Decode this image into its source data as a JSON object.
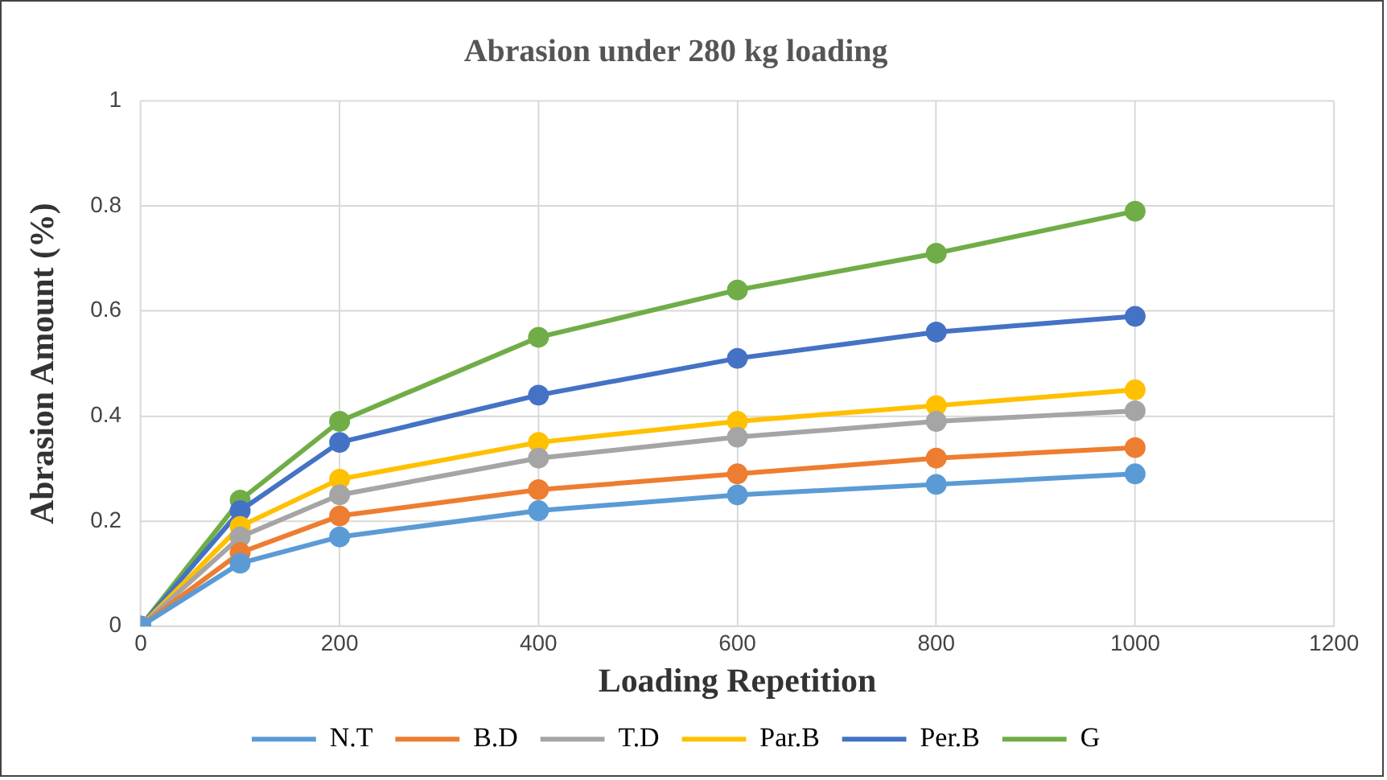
{
  "chart_data": {
    "type": "line",
    "title": "Abrasion under 280 kg loading",
    "xlabel": "Loading Repetition",
    "ylabel": "Abrasion Amount (%)",
    "x": [
      0,
      100,
      200,
      400,
      600,
      800,
      1000
    ],
    "series": [
      {
        "name": "N.T",
        "color": "#5b9bd5",
        "values": [
          0,
          0.12,
          0.17,
          0.22,
          0.25,
          0.27,
          0.29
        ]
      },
      {
        "name": "B.D",
        "color": "#ed7d31",
        "values": [
          0,
          0.14,
          0.21,
          0.26,
          0.29,
          0.32,
          0.34
        ]
      },
      {
        "name": "T.D",
        "color": "#a5a5a5",
        "values": [
          0,
          0.17,
          0.25,
          0.32,
          0.36,
          0.39,
          0.41
        ]
      },
      {
        "name": "Par.B",
        "color": "#ffc000",
        "values": [
          0,
          0.19,
          0.28,
          0.35,
          0.39,
          0.42,
          0.45
        ]
      },
      {
        "name": "Per.B",
        "color": "#4472c4",
        "values": [
          0,
          0.22,
          0.35,
          0.44,
          0.51,
          0.56,
          0.59
        ]
      },
      {
        "name": "G",
        "color": "#70ad47",
        "values": [
          0,
          0.24,
          0.39,
          0.55,
          0.64,
          0.71,
          0.79
        ]
      }
    ],
    "xlim": [
      0,
      1200
    ],
    "xticks": [
      0,
      200,
      400,
      600,
      800,
      1000,
      1200
    ],
    "ylim": [
      0,
      1
    ],
    "yticks": [
      0,
      0.2,
      0.4,
      0.6,
      0.8,
      1
    ],
    "grid": true,
    "legend": "bottom",
    "marker": "circle",
    "line_style": "solid"
  }
}
